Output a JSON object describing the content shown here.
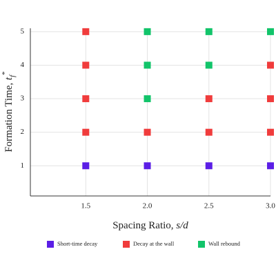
{
  "chart_data": {
    "type": "scatter",
    "xlabel": {
      "text": "Spacing Ratio, ",
      "symbol": "s/d"
    },
    "ylabel": {
      "text": "Formation Time, ",
      "symbol": "t",
      "sub": "f",
      "sup": "*"
    },
    "xlim": [
      1.05,
      3.0
    ],
    "ylim": [
      0.1,
      5.1
    ],
    "xticks": [
      1.5,
      {
        "value": 2.0,
        "label": "2.0"
      },
      2.5,
      {
        "value": 3.0,
        "label": "3.0"
      }
    ],
    "yticks": [
      1,
      2,
      3,
      4,
      5
    ],
    "grid": true,
    "legend": "bottom",
    "series": [
      {
        "name": "Short-time decay",
        "color": "#5b1ee6",
        "x": [
          1.5,
          2.0,
          2.5,
          3.0
        ],
        "values": [
          1,
          1,
          1,
          1
        ]
      },
      {
        "name": "Decay at the wall",
        "color": "#f03c3c",
        "x": [
          1.5,
          1.5,
          1.5,
          1.5,
          2.0,
          2.5,
          2.5,
          3.0,
          3.0,
          3.0
        ],
        "values": [
          2,
          3,
          4,
          5,
          2,
          2,
          3,
          2,
          3,
          4
        ]
      },
      {
        "name": "Wall rebound",
        "color": "#12c46a",
        "x": [
          2.0,
          2.0,
          2.0,
          2.5,
          2.5,
          3.0
        ],
        "values": [
          3,
          4,
          5,
          4,
          5,
          5
        ]
      }
    ]
  }
}
